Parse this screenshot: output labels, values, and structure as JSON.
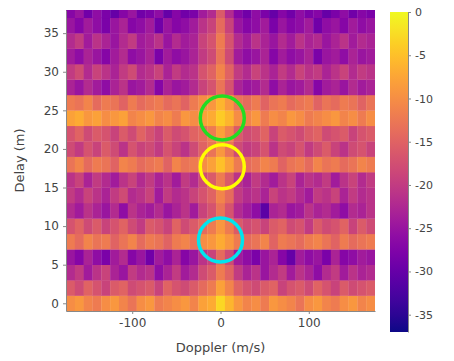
{
  "chart_data": {
    "type": "heatmap",
    "x_label": "Doppler (m/s)",
    "y_label": "Delay (m)",
    "xlim": [
      -175,
      175
    ],
    "ylim": [
      -1,
      38
    ],
    "xticks": [
      -100,
      0,
      100
    ],
    "yticks": [
      0,
      5,
      10,
      15,
      20,
      25,
      30,
      35
    ],
    "x": [
      -170,
      -160,
      -150,
      -140,
      -130,
      -120,
      -110,
      -100,
      -90,
      -80,
      -70,
      -60,
      -50,
      -40,
      -30,
      -20,
      -10,
      0,
      10,
      20,
      30,
      40,
      50,
      60,
      70,
      80,
      90,
      100,
      110,
      120,
      130,
      140,
      150,
      160,
      170
    ],
    "y": [
      0,
      2,
      4,
      6,
      8,
      10,
      12,
      14,
      16,
      18,
      20,
      22,
      24,
      26,
      28,
      30,
      32,
      34,
      36,
      38
    ],
    "z": [
      [
        -10,
        -9,
        -11,
        -12,
        -10,
        -9,
        -11,
        -13,
        -10,
        -9,
        -12,
        -11,
        -10,
        -9,
        -11,
        -8,
        -7,
        -3,
        -6,
        -9,
        -11,
        -10,
        -12,
        -9,
        -10,
        -11,
        -13,
        -10,
        -9,
        -11,
        -12,
        -10,
        -9,
        -11,
        -10
      ],
      [
        -16,
        -18,
        -15,
        -17,
        -19,
        -16,
        -15,
        -18,
        -17,
        -16,
        -19,
        -15,
        -17,
        -18,
        -16,
        -14,
        -12,
        -8,
        -11,
        -15,
        -17,
        -18,
        -16,
        -15,
        -19,
        -17,
        -16,
        -18,
        -15,
        -17,
        -19,
        -16,
        -18,
        -17,
        -16
      ],
      [
        -22,
        -20,
        -24,
        -21,
        -19,
        -23,
        -25,
        -20,
        -22,
        -21,
        -26,
        -23,
        -20,
        -24,
        -22,
        -18,
        -16,
        -12,
        -15,
        -20,
        -23,
        -21,
        -25,
        -22,
        -20,
        -24,
        -21,
        -23,
        -26,
        -22,
        -20,
        -24,
        -21,
        -23,
        -22
      ],
      [
        -25,
        -27,
        -23,
        -26,
        -28,
        -24,
        -22,
        -27,
        -25,
        -29,
        -24,
        -26,
        -23,
        -27,
        -25,
        -21,
        -19,
        -14,
        -18,
        -24,
        -26,
        -28,
        -25,
        -23,
        -27,
        -30,
        -24,
        -26,
        -25,
        -28,
        -23,
        -27,
        -26,
        -24,
        -25
      ],
      [
        -12,
        -14,
        -11,
        -13,
        -12,
        -15,
        -13,
        -11,
        -14,
        -12,
        -13,
        -15,
        -12,
        -11,
        -13,
        -10,
        -9,
        -7,
        -9,
        -12,
        -14,
        -13,
        -11,
        -15,
        -12,
        -13,
        -14,
        -12,
        -11,
        -13,
        -15,
        -12,
        -14,
        -13,
        -12
      ],
      [
        -17,
        -15,
        -18,
        -16,
        -19,
        -17,
        -15,
        -18,
        -20,
        -16,
        -17,
        -19,
        -15,
        -18,
        -16,
        -14,
        -12,
        -9,
        -12,
        -16,
        -18,
        -17,
        -19,
        -16,
        -15,
        -18,
        -17,
        -20,
        -16,
        -18,
        -17,
        -15,
        -19,
        -16,
        -18
      ],
      [
        -22,
        -24,
        -21,
        -23,
        -25,
        -22,
        -26,
        -21,
        -23,
        -24,
        -22,
        -25,
        -23,
        -21,
        -24,
        -19,
        -17,
        -13,
        -17,
        -22,
        -24,
        -26,
        -31,
        -23,
        -22,
        -25,
        -24,
        -21,
        -23,
        -22,
        -24,
        -26,
        -22,
        -23,
        -21
      ],
      [
        -20,
        -22,
        -19,
        -21,
        -23,
        -20,
        -18,
        -22,
        -21,
        -19,
        -24,
        -20,
        -22,
        -21,
        -19,
        -17,
        -15,
        -11,
        -14,
        -20,
        -22,
        -21,
        -23,
        -19,
        -21,
        -20,
        -22,
        -24,
        -20,
        -21,
        -19,
        -23,
        -20,
        -22,
        -21
      ],
      [
        -21,
        -19,
        -23,
        -20,
        -22,
        -24,
        -21,
        -19,
        -22,
        -20,
        -23,
        -21,
        -24,
        -20,
        -22,
        -18,
        -16,
        -12,
        -16,
        -21,
        -23,
        -20,
        -22,
        -24,
        -21,
        -19,
        -23,
        -21,
        -22,
        -20,
        -24,
        -21,
        -19,
        -22,
        -20
      ],
      [
        -13,
        -11,
        -14,
        -12,
        -13,
        -15,
        -11,
        -12,
        -14,
        -13,
        -12,
        -15,
        -11,
        -13,
        -12,
        -10,
        -8,
        -5,
        -8,
        -12,
        -14,
        -13,
        -11,
        -12,
        -15,
        -13,
        -12,
        -14,
        -11,
        -13,
        -12,
        -14,
        -13,
        -11,
        -12
      ],
      [
        -18,
        -20,
        -17,
        -19,
        -16,
        -18,
        -21,
        -17,
        -19,
        -18,
        -20,
        -17,
        -19,
        -21,
        -18,
        -15,
        -13,
        -9,
        -13,
        -18,
        -20,
        -19,
        -17,
        -21,
        -18,
        -19,
        -17,
        -20,
        -18,
        -16,
        -19,
        -21,
        -18,
        -17,
        -19
      ],
      [
        -17,
        -15,
        -18,
        -16,
        -17,
        -19,
        -16,
        -18,
        -15,
        -17,
        -19,
        -16,
        -18,
        -17,
        -15,
        -14,
        -12,
        -8,
        -11,
        -16,
        -18,
        -17,
        -15,
        -19,
        -16,
        -17,
        -18,
        -16,
        -15,
        -18,
        -17,
        -16,
        -19,
        -17,
        -16
      ],
      [
        -8,
        -7,
        -9,
        -8,
        -10,
        -9,
        -8,
        -11,
        -10,
        -9,
        -11,
        -10,
        -12,
        -9,
        -10,
        -8,
        -7,
        -4,
        -6,
        -10,
        -11,
        -9,
        -12,
        -10,
        -11,
        -9,
        -10,
        -12,
        -11,
        -10,
        -9,
        -11,
        -10,
        -12,
        -10
      ],
      [
        -12,
        -13,
        -11,
        -14,
        -12,
        -13,
        -15,
        -12,
        -14,
        -13,
        -12,
        -14,
        -13,
        -15,
        -12,
        -10,
        -9,
        -6,
        -9,
        -13,
        -14,
        -12,
        -15,
        -13,
        -12,
        -14,
        -13,
        -12,
        -15,
        -13,
        -14,
        -12,
        -13,
        -15,
        -13
      ],
      [
        -23,
        -25,
        -22,
        -24,
        -26,
        -23,
        -21,
        -25,
        -24,
        -22,
        -27,
        -23,
        -25,
        -24,
        -22,
        -19,
        -17,
        -13,
        -17,
        -23,
        -25,
        -24,
        -22,
        -26,
        -23,
        -25,
        -24,
        -22,
        -27,
        -24,
        -23,
        -25,
        -22,
        -24,
        -23
      ],
      [
        -20,
        -18,
        -22,
        -19,
        -21,
        -23,
        -20,
        -18,
        -22,
        -21,
        -19,
        -23,
        -20,
        -22,
        -21,
        -17,
        -15,
        -11,
        -15,
        -20,
        -22,
        -19,
        -21,
        -23,
        -20,
        -22,
        -19,
        -21,
        -20,
        -23,
        -21,
        -19,
        -22,
        -20,
        -21
      ],
      [
        -24,
        -26,
        -23,
        -25,
        -27,
        -24,
        -22,
        -26,
        -25,
        -23,
        -28,
        -24,
        -26,
        -25,
        -23,
        -20,
        -18,
        -13,
        -18,
        -24,
        -26,
        -25,
        -23,
        -27,
        -24,
        -26,
        -25,
        -23,
        -28,
        -25,
        -24,
        -26,
        -23,
        -25,
        -24
      ],
      [
        -22,
        -20,
        -24,
        -21,
        -23,
        -25,
        -22,
        -20,
        -24,
        -23,
        -21,
        -25,
        -22,
        -24,
        -23,
        -19,
        -17,
        -12,
        -17,
        -22,
        -24,
        -21,
        -23,
        -25,
        -22,
        -24,
        -21,
        -23,
        -22,
        -25,
        -23,
        -21,
        -24,
        -22,
        -23
      ],
      [
        -25,
        -27,
        -24,
        -26,
        -28,
        -25,
        -23,
        -27,
        -26,
        -24,
        -29,
        -25,
        -27,
        -26,
        -24,
        -21,
        -19,
        -14,
        -19,
        -25,
        -27,
        -26,
        -24,
        -28,
        -25,
        -27,
        -26,
        -24,
        -29,
        -26,
        -25,
        -27,
        -24,
        -26,
        -25
      ],
      [
        -27,
        -25,
        -29,
        -26,
        -28,
        -30,
        -27,
        -25,
        -29,
        -28,
        -26,
        -30,
        -27,
        -29,
        -28,
        -24,
        -22,
        -16,
        -22,
        -27,
        -29,
        -26,
        -28,
        -30,
        -27,
        -29,
        -26,
        -28,
        -27,
        -30,
        -28,
        -26,
        -29,
        -27,
        -28
      ]
    ],
    "colorbar": {
      "range": [
        -37,
        0
      ],
      "ticks": [
        0,
        -5,
        -10,
        -15,
        -20,
        -25,
        -30,
        -35
      ]
    },
    "circles": [
      {
        "x": 2,
        "y": 24,
        "color": "#22dd22"
      },
      {
        "x": 2,
        "y": 17.7,
        "color": "#ffff00"
      },
      {
        "x": 0,
        "y": 8.2,
        "color": "#00e5ee"
      }
    ]
  }
}
